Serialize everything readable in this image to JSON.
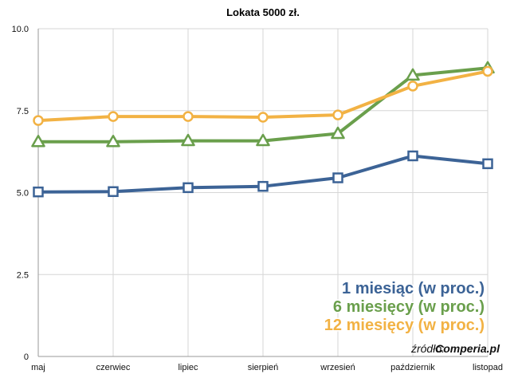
{
  "chart_data": {
    "type": "line",
    "title": "Lokata 5000 zł.",
    "categories": [
      "maj",
      "czerwiec",
      "lipiec",
      "sierpień",
      "wrzesień",
      "październik",
      "listopad"
    ],
    "ylim": [
      0,
      10
    ],
    "yticks": [
      "0",
      "2.5",
      "5.0",
      "7.5",
      "10.0"
    ],
    "ytick_values": [
      0,
      2.5,
      5,
      7.5,
      10
    ],
    "grid": true,
    "legend_placement": "bottom-right",
    "series": [
      {
        "name": "1 miesiąc (w proc.)",
        "values": [
          5.02,
          5.03,
          5.15,
          5.19,
          5.45,
          6.12,
          5.88
        ],
        "color": "#3c6396",
        "marker": "square"
      },
      {
        "name": "6 miesięcy (w proc.)",
        "values": [
          6.55,
          6.55,
          6.58,
          6.58,
          6.8,
          8.58,
          8.8
        ],
        "color": "#6a9f4c",
        "marker": "triangle"
      },
      {
        "name": "12 miesięcy (w proc.)",
        "values": [
          7.2,
          7.32,
          7.32,
          7.3,
          7.37,
          8.25,
          8.7
        ],
        "color": "#f2b244",
        "marker": "circle"
      }
    ],
    "source": {
      "prefix": "źródło:",
      "brand": "Comperia.pl"
    }
  }
}
